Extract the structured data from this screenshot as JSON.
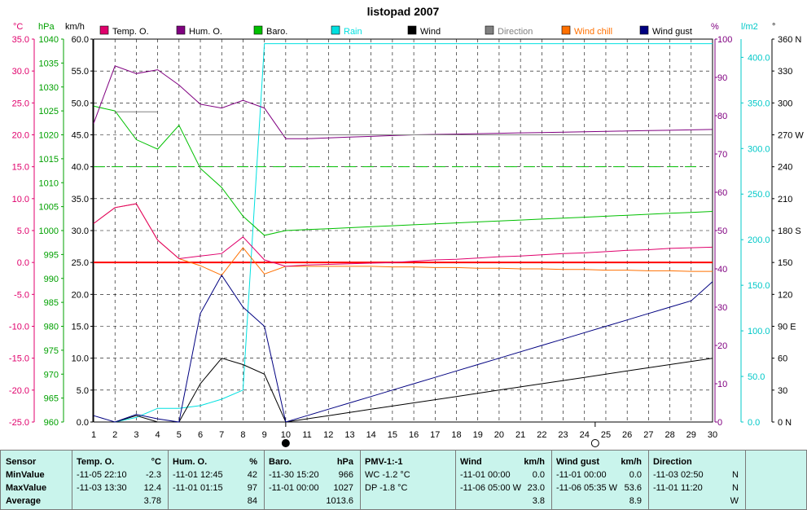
{
  "chart_data": {
    "type": "line",
    "title": "listopad 2007",
    "x": [
      1,
      2,
      3,
      4,
      5,
      6,
      7,
      8,
      9,
      10,
      11,
      12,
      13,
      14,
      15,
      16,
      17,
      18,
      19,
      20,
      21,
      22,
      23,
      24,
      25,
      26,
      27,
      28,
      29,
      30
    ],
    "xlim": [
      1,
      30
    ],
    "grid": true,
    "legend_placement": "top",
    "axes": {
      "temp": {
        "unit": "°C",
        "ylim": [
          -25,
          35
        ],
        "ticks": [
          "35.0",
          "30.0",
          "25.0",
          "20.0",
          "15.0",
          "10.0",
          "5.0",
          "0.0",
          "-5.0",
          "-10.0",
          "-15.0",
          "-20.0",
          "-25.0"
        ],
        "color": "#e0006c"
      },
      "baro": {
        "unit": "hPa",
        "ylim": [
          960,
          1040
        ],
        "ticks": [
          "1040",
          "1035",
          "1030",
          "1025",
          "1020",
          "1015",
          "1010",
          "1005",
          "1000",
          "995",
          "990",
          "985",
          "980",
          "975",
          "970",
          "965",
          "960"
        ],
        "color": "#00a000"
      },
      "wind": {
        "unit": "km/h",
        "ylim": [
          0,
          60
        ],
        "ticks": [
          "60.0",
          "55.0",
          "50.0",
          "45.0",
          "40.0",
          "35.0",
          "30.0",
          "25.0",
          "20.0",
          "15.0",
          "10.0",
          "5.0",
          "0.0"
        ],
        "color": "#000000"
      },
      "hum": {
        "unit": "%",
        "ylim": [
          0,
          100
        ],
        "ticks": [
          "100",
          "90",
          "80",
          "70",
          "60",
          "50",
          "40",
          "30",
          "20",
          "10",
          "0"
        ],
        "color": "#800080"
      },
      "rain": {
        "unit": "l/m2",
        "ylim": [
          0,
          420
        ],
        "ticks": [
          "400.0",
          "350.0",
          "300.0",
          "250.0",
          "200.0",
          "150.0",
          "100.0",
          "50.0",
          "0.0"
        ],
        "color": "#00c8c8"
      },
      "dir": {
        "unit": "°",
        "ylim": [
          0,
          360
        ],
        "ticks": [
          "360 N",
          "330",
          "300",
          "270 W",
          "240",
          "210",
          "180 S",
          "150",
          "120",
          "90 E",
          "60",
          "30",
          "0 N"
        ],
        "color": "#000000"
      }
    },
    "series": [
      {
        "name": "Temp. O.",
        "axis": "temp",
        "color": "#e0006c",
        "y": [
          6.1,
          8.6,
          9.2,
          3.5,
          0.6,
          1.0,
          1.4,
          4.0,
          0.4,
          -0.6,
          -0.4,
          -0.3,
          -0.2,
          -0.1,
          0.0,
          0.2,
          0.4,
          0.5,
          0.7,
          0.9,
          1.0,
          1.2,
          1.4,
          1.5,
          1.7,
          1.9,
          2.0,
          2.2,
          2.3,
          2.4
        ]
      },
      {
        "name": "Hum. O.",
        "axis": "hum",
        "color": "#800080",
        "y": [
          78,
          93,
          91,
          92,
          88,
          83,
          82,
          84,
          82,
          74,
          74,
          74.2,
          74.4,
          74.6,
          74.8,
          75,
          75.1,
          75.2,
          75.3,
          75.4,
          75.5,
          75.6,
          75.7,
          75.8,
          75.9,
          76,
          76.1,
          76.2,
          76.3,
          76.4
        ]
      },
      {
        "name": "Baro.",
        "axis": "baro",
        "color": "#00c000",
        "y": [
          1026,
          1025,
          1019,
          1017,
          1022,
          1013,
          1009,
          1003,
          999,
          1000,
          1000.2,
          1000.4,
          1000.6,
          1000.8,
          1001,
          1001.2,
          1001.4,
          1001.6,
          1001.8,
          1002,
          1002.2,
          1002.4,
          1002.6,
          1002.8,
          1003,
          1003.2,
          1003.4,
          1003.6,
          1003.8,
          1004
        ]
      },
      {
        "name": "Rain",
        "axis": "rain",
        "color": "#00e0e0",
        "y": [
          0,
          0,
          5,
          15,
          15,
          18,
          25,
          35,
          415,
          415,
          415,
          415,
          415,
          415,
          415,
          415,
          415,
          415,
          415,
          415,
          415,
          415,
          415,
          415,
          415,
          415,
          415,
          415,
          415,
          415
        ]
      },
      {
        "name": "Wind",
        "axis": "wind",
        "color": "#000000",
        "y": [
          0,
          0,
          1,
          0,
          0,
          6,
          10,
          9,
          7.5,
          0,
          0.5,
          1,
          1.5,
          2,
          2.5,
          3,
          3.5,
          4,
          4.5,
          5,
          5.5,
          6,
          6.5,
          7,
          7.5,
          8,
          8.5,
          9,
          9.5,
          10
        ]
      },
      {
        "name": "Direction",
        "axis": "dir",
        "color": "#808080",
        "y": [
          null,
          null,
          null,
          null,
          null,
          null,
          null,
          null,
          null,
          null,
          null,
          null,
          null,
          null,
          null,
          null,
          null,
          null,
          null,
          null,
          null,
          null,
          null,
          null,
          null,
          null,
          null,
          null,
          null,
          null
        ]
      },
      {
        "name": "Wind chill",
        "axis": "temp",
        "color": "#ff7000",
        "y": [
          6.1,
          8.6,
          9.2,
          3.5,
          0.6,
          -0.5,
          -2.0,
          2.3,
          -1.8,
          -0.6,
          -0.6,
          -0.6,
          -0.6,
          -0.6,
          -0.7,
          -0.7,
          -0.8,
          -0.8,
          -0.9,
          -0.9,
          -1.0,
          -1.0,
          -1.1,
          -1.1,
          -1.2,
          -1.2,
          -1.3,
          -1.3,
          -1.4,
          -1.4
        ]
      },
      {
        "name": "Wind gust",
        "axis": "wind",
        "color": "#000080",
        "y": [
          1,
          0,
          1.2,
          0.5,
          0,
          17,
          23,
          18,
          15,
          0,
          1,
          2,
          3,
          4,
          5,
          6,
          7,
          8,
          9,
          10,
          11,
          12,
          13,
          14,
          15,
          16,
          17,
          18,
          19,
          22
        ]
      }
    ],
    "reference_lines": [
      {
        "axis": "temp",
        "value": 0,
        "color": "#ff0000",
        "style": "solid"
      },
      {
        "axis": "wind",
        "value": 40,
        "color": "#00c000",
        "style": "dashed"
      }
    ],
    "markers": [
      {
        "x": 10,
        "symbol": "filled-circle"
      },
      {
        "x": 24.5,
        "symbol": "open-circle"
      }
    ]
  },
  "stats": {
    "header": "Sensor",
    "rows": [
      "MinValue",
      "MaxValue",
      "Average"
    ],
    "columns": [
      {
        "title": "Temp. O.",
        "unit": "°C",
        "min_time": "-11-05  22:10",
        "min_val": "-2.3",
        "max_time": "-11-03  13:30",
        "max_val": "12.4",
        "avg": "3.78"
      },
      {
        "title": "Hum. O.",
        "unit": "%",
        "min_time": "-11-01  12:45",
        "min_val": "42",
        "max_time": "-11-01  01:15",
        "max_val": "97",
        "avg": "84"
      },
      {
        "title": "Baro.",
        "unit": "hPa",
        "min_time": "-11-30  15:20",
        "min_val": "966",
        "max_time": "-11-01  00:00",
        "max_val": "1027",
        "avg": "1013.6"
      },
      {
        "title": "PMV-1:-1",
        "unit": "",
        "min_time": "WC -1.2 °C",
        "min_val": "",
        "max_time": "DP -1.8 °C",
        "max_val": "",
        "avg": ""
      },
      {
        "title": "Wind",
        "unit": "km/h",
        "min_time": "-11-01  00:00",
        "min_val": "0.0",
        "max_time": "-11-06  05:00  W",
        "max_val": "23.0",
        "avg": "3.8"
      },
      {
        "title": "Wind gust",
        "unit": "km/h",
        "min_time": "-11-01  00:00",
        "min_val": "0.0",
        "max_time": "-11-06  05:35  W",
        "max_val": "53.6",
        "avg": "8.9"
      },
      {
        "title": "Direction",
        "unit": "",
        "min_time": "-11-03  02:50",
        "min_val": "N",
        "max_time": "-11-01  11:20",
        "max_val": "N",
        "avg": "W"
      }
    ]
  }
}
